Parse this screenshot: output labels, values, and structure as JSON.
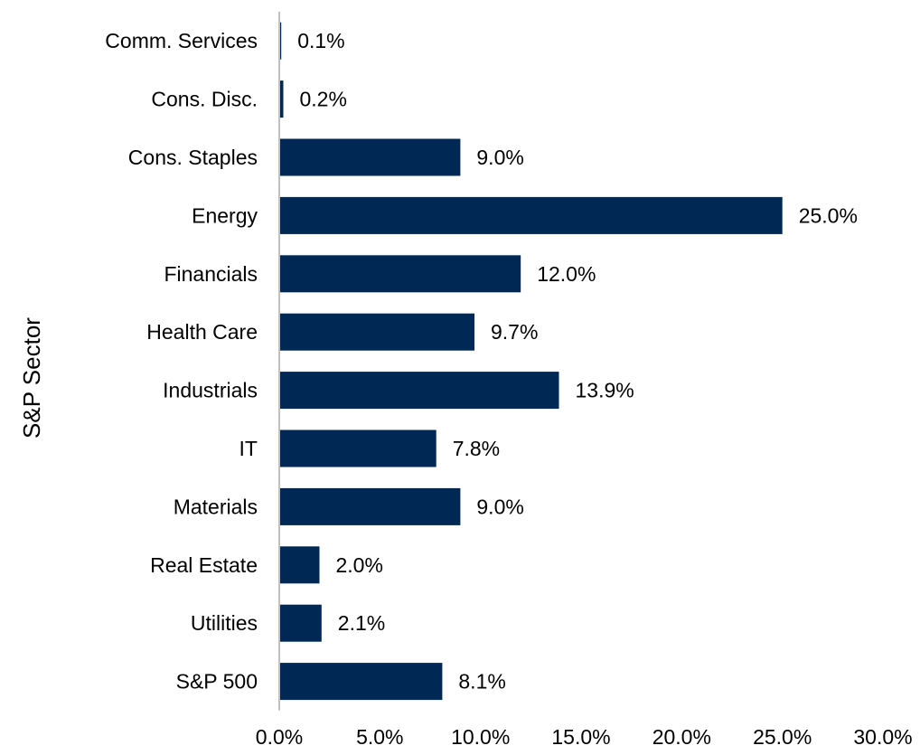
{
  "chart_data": {
    "type": "bar",
    "orientation": "horizontal",
    "ylabel": "S&P Sector",
    "xlabel": "",
    "categories": [
      "Comm. Services",
      "Cons. Disc.",
      "Cons. Staples",
      "Energy",
      "Financials",
      "Health Care",
      "Industrials",
      "IT",
      "Materials",
      "Real Estate",
      "Utilities",
      "S&P 500"
    ],
    "values": [
      0.1,
      0.2,
      9.0,
      25.0,
      12.0,
      9.7,
      13.9,
      7.8,
      9.0,
      2.0,
      2.1,
      8.1
    ],
    "value_labels": [
      "0.1%",
      "0.2%",
      "9.0%",
      "25.0%",
      "12.0%",
      "9.7%",
      "13.9%",
      "7.8%",
      "9.0%",
      "2.0%",
      "2.1%",
      "8.1%"
    ],
    "xlim": [
      0,
      30
    ],
    "xticks": [
      "0.0%",
      "5.0%",
      "10.0%",
      "15.0%",
      "20.0%",
      "25.0%",
      "30.0%"
    ],
    "bar_color": "#002855",
    "axis_color": "#c0c0c0",
    "grid": false,
    "legend": "none"
  }
}
